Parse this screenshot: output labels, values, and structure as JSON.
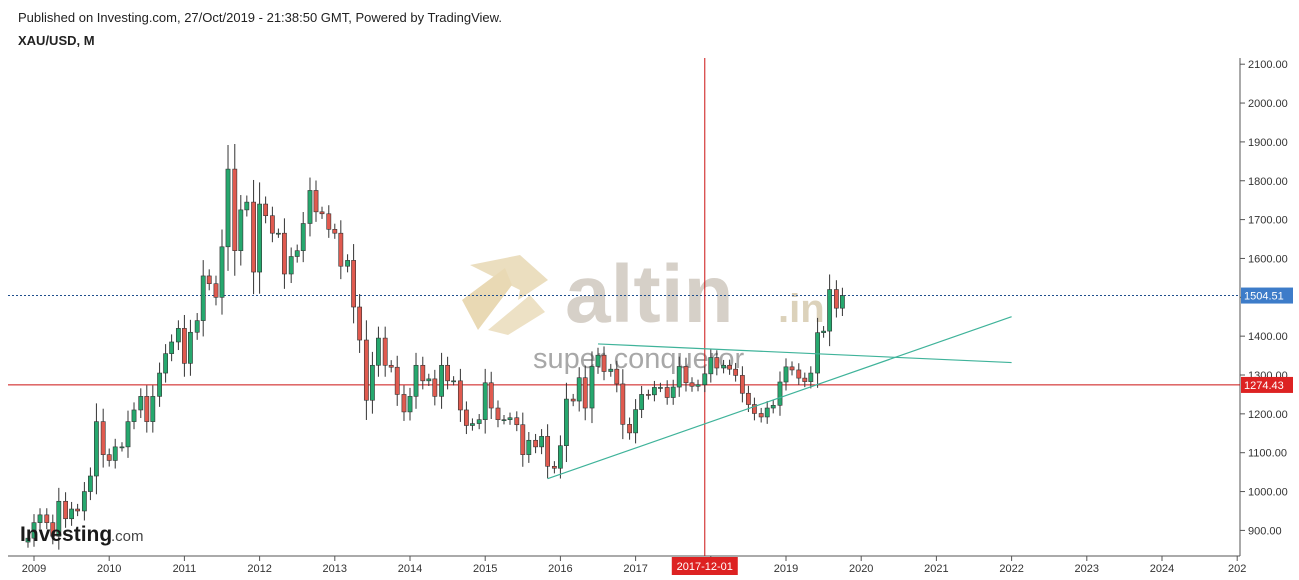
{
  "header": {
    "published": "Published on Investing.com, 27/Oct/2019 - 21:38:50 GMT, Powered by TradingView.",
    "symbol": "XAU/USD, M"
  },
  "watermark": {
    "brand": "altin",
    "brand_suffix": ".in",
    "tagline": "super conqueror",
    "publisher": "Investing",
    "publisher_suffix": ".com"
  },
  "colors": {
    "up": "#26a86e",
    "down": "#e05a4f",
    "trendline": "#3fb39a",
    "support": "#cc1111",
    "price_line": "#1f4e8c",
    "crosshair": "#cc1111"
  },
  "chart_data": {
    "type": "candlestick",
    "title": "XAU/USD, M",
    "x_ticks": [
      "2009",
      "2010",
      "2011",
      "2012",
      "2013",
      "2014",
      "2015",
      "2016",
      "2017",
      "2018",
      "2019",
      "2020",
      "2021",
      "2022",
      "2023",
      "2024",
      "202"
    ],
    "y_ticks": [
      "900.00",
      "1000.00",
      "1100.00",
      "1200.00",
      "1300.00",
      "1400.00",
      "1500.00",
      "1600.00",
      "1700.00",
      "1800.00",
      "1900.00",
      "2000.00",
      "2100.00"
    ],
    "ylim": [
      830,
      2110
    ],
    "current_price_label": "1504.51",
    "support_label": "1274.43",
    "crosshair_date_label": "2017-12-01",
    "crosshair_x": 2017.92,
    "candles": [
      {
        "x": 2008.92,
        "o": 870,
        "c": 880
      },
      {
        "x": 2009.0,
        "o": 880,
        "c": 920
      },
      {
        "x": 2009.08,
        "o": 920,
        "c": 940
      },
      {
        "x": 2009.17,
        "o": 940,
        "c": 920
      },
      {
        "x": 2009.25,
        "o": 920,
        "c": 885
      },
      {
        "x": 2009.33,
        "o": 885,
        "c": 975
      },
      {
        "x": 2009.42,
        "o": 975,
        "c": 930
      },
      {
        "x": 2009.5,
        "o": 930,
        "c": 955
      },
      {
        "x": 2009.58,
        "o": 955,
        "c": 950
      },
      {
        "x": 2009.67,
        "o": 950,
        "c": 1000
      },
      {
        "x": 2009.75,
        "o": 1000,
        "c": 1040
      },
      {
        "x": 2009.83,
        "o": 1040,
        "c": 1180
      },
      {
        "x": 2009.92,
        "o": 1180,
        "c": 1095
      },
      {
        "x": 2010.0,
        "o": 1095,
        "c": 1080
      },
      {
        "x": 2010.08,
        "o": 1080,
        "c": 1115
      },
      {
        "x": 2010.17,
        "o": 1115,
        "c": 1115
      },
      {
        "x": 2010.25,
        "o": 1115,
        "c": 1180
      },
      {
        "x": 2010.33,
        "o": 1180,
        "c": 1210
      },
      {
        "x": 2010.42,
        "o": 1210,
        "c": 1245
      },
      {
        "x": 2010.5,
        "o": 1245,
        "c": 1180
      },
      {
        "x": 2010.58,
        "o": 1180,
        "c": 1245
      },
      {
        "x": 2010.67,
        "o": 1245,
        "c": 1305
      },
      {
        "x": 2010.75,
        "o": 1305,
        "c": 1355
      },
      {
        "x": 2010.83,
        "o": 1355,
        "c": 1385
      },
      {
        "x": 2010.92,
        "o": 1385,
        "c": 1420
      },
      {
        "x": 2011.0,
        "o": 1420,
        "c": 1330
      },
      {
        "x": 2011.08,
        "o": 1330,
        "c": 1410
      },
      {
        "x": 2011.17,
        "o": 1410,
        "c": 1440
      },
      {
        "x": 2011.25,
        "o": 1440,
        "c": 1555
      },
      {
        "x": 2011.33,
        "o": 1555,
        "c": 1535
      },
      {
        "x": 2011.42,
        "o": 1535,
        "c": 1500
      },
      {
        "x": 2011.5,
        "o": 1500,
        "c": 1630
      },
      {
        "x": 2011.58,
        "o": 1630,
        "c": 1830
      },
      {
        "x": 2011.67,
        "o": 1830,
        "c": 1620
      },
      {
        "x": 2011.75,
        "o": 1620,
        "c": 1725
      },
      {
        "x": 2011.83,
        "o": 1725,
        "c": 1745
      },
      {
        "x": 2011.92,
        "o": 1745,
        "c": 1565
      },
      {
        "x": 2012.0,
        "o": 1565,
        "c": 1740
      },
      {
        "x": 2012.08,
        "o": 1740,
        "c": 1710
      },
      {
        "x": 2012.17,
        "o": 1710,
        "c": 1665
      },
      {
        "x": 2012.25,
        "o": 1665,
        "c": 1665
      },
      {
        "x": 2012.33,
        "o": 1665,
        "c": 1560
      },
      {
        "x": 2012.42,
        "o": 1560,
        "c": 1605
      },
      {
        "x": 2012.5,
        "o": 1605,
        "c": 1620
      },
      {
        "x": 2012.58,
        "o": 1620,
        "c": 1690
      },
      {
        "x": 2012.67,
        "o": 1690,
        "c": 1775
      },
      {
        "x": 2012.75,
        "o": 1775,
        "c": 1720
      },
      {
        "x": 2012.83,
        "o": 1720,
        "c": 1715
      },
      {
        "x": 2012.92,
        "o": 1715,
        "c": 1675
      },
      {
        "x": 2013.0,
        "o": 1675,
        "c": 1665
      },
      {
        "x": 2013.08,
        "o": 1665,
        "c": 1580
      },
      {
        "x": 2013.17,
        "o": 1580,
        "c": 1595
      },
      {
        "x": 2013.25,
        "o": 1595,
        "c": 1475
      },
      {
        "x": 2013.33,
        "o": 1475,
        "c": 1390
      },
      {
        "x": 2013.42,
        "o": 1390,
        "c": 1235
      },
      {
        "x": 2013.5,
        "o": 1235,
        "c": 1325
      },
      {
        "x": 2013.58,
        "o": 1325,
        "c": 1395
      },
      {
        "x": 2013.67,
        "o": 1395,
        "c": 1325
      },
      {
        "x": 2013.75,
        "o": 1325,
        "c": 1320
      },
      {
        "x": 2013.83,
        "o": 1320,
        "c": 1250
      },
      {
        "x": 2013.92,
        "o": 1250,
        "c": 1205
      },
      {
        "x": 2014.0,
        "o": 1205,
        "c": 1245
      },
      {
        "x": 2014.08,
        "o": 1245,
        "c": 1325
      },
      {
        "x": 2014.17,
        "o": 1325,
        "c": 1285
      },
      {
        "x": 2014.25,
        "o": 1285,
        "c": 1290
      },
      {
        "x": 2014.33,
        "o": 1290,
        "c": 1245
      },
      {
        "x": 2014.42,
        "o": 1245,
        "c": 1325
      },
      {
        "x": 2014.5,
        "o": 1325,
        "c": 1285
      },
      {
        "x": 2014.58,
        "o": 1285,
        "c": 1285
      },
      {
        "x": 2014.67,
        "o": 1285,
        "c": 1210
      },
      {
        "x": 2014.75,
        "o": 1210,
        "c": 1170
      },
      {
        "x": 2014.83,
        "o": 1170,
        "c": 1175
      },
      {
        "x": 2014.92,
        "o": 1175,
        "c": 1185
      },
      {
        "x": 2015.0,
        "o": 1185,
        "c": 1280
      },
      {
        "x": 2015.08,
        "o": 1280,
        "c": 1215
      },
      {
        "x": 2015.17,
        "o": 1215,
        "c": 1185
      },
      {
        "x": 2015.25,
        "o": 1185,
        "c": 1185
      },
      {
        "x": 2015.33,
        "o": 1185,
        "c": 1190
      },
      {
        "x": 2015.42,
        "o": 1190,
        "c": 1172
      },
      {
        "x": 2015.5,
        "o": 1172,
        "c": 1095
      },
      {
        "x": 2015.58,
        "o": 1095,
        "c": 1132
      },
      {
        "x": 2015.67,
        "o": 1132,
        "c": 1115
      },
      {
        "x": 2015.75,
        "o": 1115,
        "c": 1142
      },
      {
        "x": 2015.83,
        "o": 1142,
        "c": 1065
      },
      {
        "x": 2015.92,
        "o": 1065,
        "c": 1060
      },
      {
        "x": 2016.0,
        "o": 1060,
        "c": 1118
      },
      {
        "x": 2016.08,
        "o": 1118,
        "c": 1238
      },
      {
        "x": 2016.17,
        "o": 1238,
        "c": 1233
      },
      {
        "x": 2016.25,
        "o": 1233,
        "c": 1293
      },
      {
        "x": 2016.33,
        "o": 1293,
        "c": 1215
      },
      {
        "x": 2016.42,
        "o": 1215,
        "c": 1322
      },
      {
        "x": 2016.5,
        "o": 1322,
        "c": 1351
      },
      {
        "x": 2016.58,
        "o": 1351,
        "c": 1309
      },
      {
        "x": 2016.67,
        "o": 1309,
        "c": 1315
      },
      {
        "x": 2016.75,
        "o": 1315,
        "c": 1277
      },
      {
        "x": 2016.83,
        "o": 1277,
        "c": 1173
      },
      {
        "x": 2016.92,
        "o": 1173,
        "c": 1151
      },
      {
        "x": 2017.0,
        "o": 1151,
        "c": 1211
      },
      {
        "x": 2017.08,
        "o": 1211,
        "c": 1250
      },
      {
        "x": 2017.17,
        "o": 1250,
        "c": 1249
      },
      {
        "x": 2017.25,
        "o": 1249,
        "c": 1268
      },
      {
        "x": 2017.33,
        "o": 1268,
        "c": 1268
      },
      {
        "x": 2017.42,
        "o": 1268,
        "c": 1242
      },
      {
        "x": 2017.5,
        "o": 1242,
        "c": 1269
      },
      {
        "x": 2017.58,
        "o": 1269,
        "c": 1322
      },
      {
        "x": 2017.67,
        "o": 1322,
        "c": 1280
      },
      {
        "x": 2017.75,
        "o": 1280,
        "c": 1271
      },
      {
        "x": 2017.83,
        "o": 1271,
        "c": 1275
      },
      {
        "x": 2017.92,
        "o": 1275,
        "c": 1303
      },
      {
        "x": 2018.0,
        "o": 1303,
        "c": 1345
      },
      {
        "x": 2018.08,
        "o": 1345,
        "c": 1318
      },
      {
        "x": 2018.17,
        "o": 1318,
        "c": 1325
      },
      {
        "x": 2018.25,
        "o": 1325,
        "c": 1315
      },
      {
        "x": 2018.33,
        "o": 1315,
        "c": 1299
      },
      {
        "x": 2018.42,
        "o": 1299,
        "c": 1253
      },
      {
        "x": 2018.5,
        "o": 1253,
        "c": 1224
      },
      {
        "x": 2018.58,
        "o": 1224,
        "c": 1201
      },
      {
        "x": 2018.67,
        "o": 1201,
        "c": 1192
      },
      {
        "x": 2018.75,
        "o": 1192,
        "c": 1215
      },
      {
        "x": 2018.83,
        "o": 1215,
        "c": 1222
      },
      {
        "x": 2018.92,
        "o": 1222,
        "c": 1282
      },
      {
        "x": 2019.0,
        "o": 1282,
        "c": 1321
      },
      {
        "x": 2019.08,
        "o": 1321,
        "c": 1313
      },
      {
        "x": 2019.17,
        "o": 1313,
        "c": 1292
      },
      {
        "x": 2019.25,
        "o": 1292,
        "c": 1283
      },
      {
        "x": 2019.33,
        "o": 1283,
        "c": 1305
      },
      {
        "x": 2019.42,
        "o": 1305,
        "c": 1409
      },
      {
        "x": 2019.5,
        "o": 1409,
        "c": 1413
      },
      {
        "x": 2019.58,
        "o": 1413,
        "c": 1520
      },
      {
        "x": 2019.67,
        "o": 1520,
        "c": 1472
      },
      {
        "x": 2019.75,
        "o": 1472,
        "c": 1504.51
      }
    ],
    "trendlines": [
      {
        "name": "rising support",
        "x1": 2015.83,
        "y1": 1033,
        "x2": 2022.0,
        "y2": 1450
      },
      {
        "name": "falling resistance",
        "x1": 2016.5,
        "y1": 1380,
        "x2": 2022.0,
        "y2": 1332
      }
    ]
  }
}
